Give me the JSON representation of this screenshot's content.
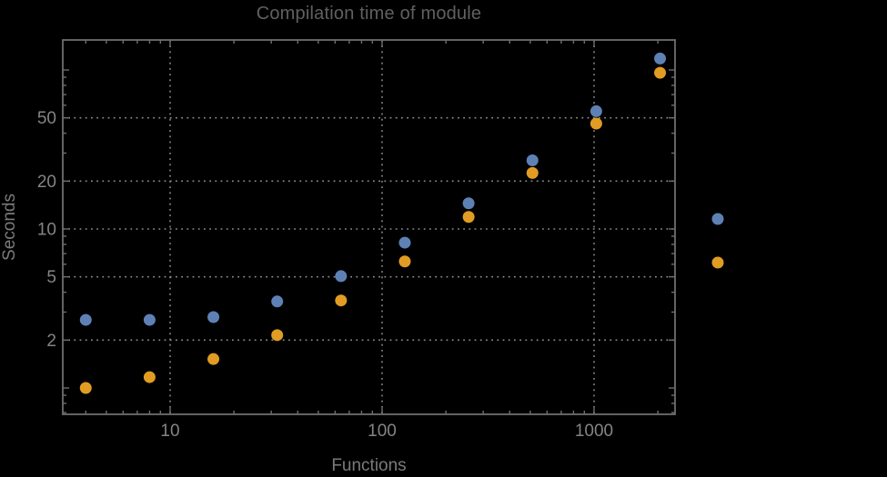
{
  "window": {
    "background": "#000000"
  },
  "chart_data": {
    "type": "scatter",
    "title": "Compilation time of module",
    "xlabel": "Functions",
    "ylabel": "Seconds",
    "x_scale": "log",
    "y_scale": "log",
    "x_range": [
      3.12,
      2410
    ],
    "y_range": [
      0.68,
      154
    ],
    "grid": "dotted",
    "x_ticks_labeled": [
      10,
      100,
      1000
    ],
    "y_ticks_labeled": [
      2,
      5,
      10,
      20,
      50
    ],
    "y_ticks_major_unlabeled": [
      1,
      100
    ],
    "x_ticks_minor": [
      4,
      5,
      6,
      7,
      8,
      9,
      20,
      30,
      40,
      50,
      60,
      70,
      80,
      90,
      200,
      300,
      400,
      500,
      600,
      700,
      800,
      900,
      2000
    ],
    "y_ticks_minor": [
      0.7,
      0.8,
      0.9,
      3,
      4,
      6,
      7,
      8,
      9,
      30,
      40,
      60,
      70,
      80,
      90
    ],
    "x": [
      4,
      8,
      16,
      32,
      64,
      128,
      256,
      512,
      1024,
      2048
    ],
    "series": [
      {
        "name": "blue",
        "color": "#5e81b5",
        "values": [
          2.68,
          2.68,
          2.79,
          3.5,
          5.05,
          8.2,
          14.5,
          27,
          55,
          118
        ]
      },
      {
        "name": "orange",
        "color": "#e19c24",
        "values": [
          1.0,
          1.17,
          1.52,
          2.15,
          3.55,
          6.25,
          11.9,
          22.5,
          46,
          96
        ]
      }
    ],
    "legend": {
      "position": "outside-right",
      "labels_visible": false,
      "markers": [
        {
          "series": "blue",
          "color": "#5e81b5"
        },
        {
          "series": "orange",
          "color": "#e19c24"
        }
      ]
    }
  },
  "colors": {
    "background": "#000000",
    "frame": "#6e6e6e",
    "gridline": "#8a8a8a",
    "tick_label": "#848484",
    "axis_label": "#7a7a7a",
    "title": "#606060"
  }
}
